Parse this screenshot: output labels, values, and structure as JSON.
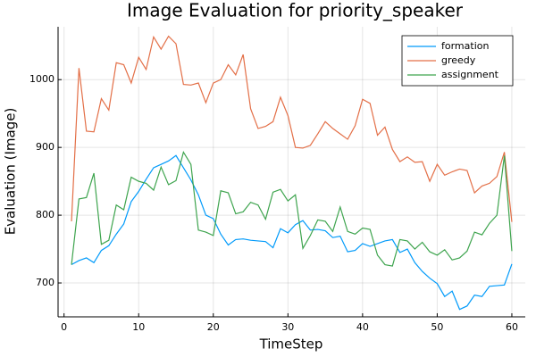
{
  "chart_data": {
    "type": "line",
    "title": "Image Evaluation for priority_speaker",
    "x_label": "TimeStep",
    "y_label": "Evaluation (Image)",
    "x": [
      1,
      2,
      3,
      4,
      5,
      6,
      7,
      8,
      9,
      10,
      11,
      12,
      13,
      14,
      15,
      16,
      17,
      18,
      19,
      20,
      21,
      22,
      23,
      24,
      25,
      26,
      27,
      28,
      29,
      30,
      31,
      32,
      33,
      34,
      35,
      36,
      37,
      38,
      39,
      40,
      41,
      42,
      43,
      44,
      45,
      46,
      47,
      48,
      49,
      50,
      51,
      52,
      53,
      54,
      55,
      56,
      57,
      58,
      59,
      60
    ],
    "series": [
      {
        "name": "formation",
        "color": "#009afa",
        "values": [
          727,
          733,
          737,
          730,
          748,
          755,
          772,
          787,
          820,
          835,
          853,
          870,
          875,
          880,
          888,
          870,
          852,
          830,
          800,
          795,
          772,
          756,
          764,
          765,
          763,
          762,
          761,
          752,
          780,
          774,
          786,
          792,
          778,
          779,
          777,
          767,
          769,
          746,
          748,
          758,
          754,
          758,
          762,
          764,
          745,
          750,
          730,
          717,
          707,
          699,
          680,
          688,
          661,
          666,
          682,
          680,
          695,
          696,
          697,
          728
        ]
      },
      {
        "name": "greedy",
        "color": "#e36f47",
        "values": [
          791,
          1017,
          924,
          923,
          972,
          955,
          1025,
          1022,
          995,
          1033,
          1015,
          1063,
          1045,
          1064,
          1053,
          993,
          992,
          995,
          966,
          995,
          1000,
          1022,
          1007,
          1037,
          957,
          928,
          931,
          938,
          974,
          947,
          900,
          899,
          903,
          920,
          938,
          928,
          920,
          912,
          932,
          971,
          965,
          918,
          930,
          897,
          879,
          886,
          878,
          879,
          850,
          875,
          859,
          864,
          868,
          866,
          833,
          843,
          847,
          857,
          893,
          790
        ]
      },
      {
        "name": "assignment",
        "color": "#3ea44e",
        "values": [
          727,
          824,
          826,
          862,
          757,
          763,
          815,
          808,
          856,
          850,
          847,
          837,
          871,
          845,
          851,
          893,
          875,
          778,
          775,
          770,
          836,
          833,
          802,
          805,
          819,
          815,
          794,
          834,
          838,
          821,
          830,
          751,
          770,
          793,
          791,
          776,
          812,
          776,
          772,
          781,
          779,
          741,
          727,
          725,
          764,
          762,
          750,
          760,
          746,
          741,
          749,
          734,
          737,
          747,
          775,
          771,
          788,
          800,
          888,
          747
        ]
      }
    ],
    "xlim": [
      -0.8,
      61.8
    ],
    "ylim": [
      650,
      1078
    ],
    "xticks": [
      0,
      10,
      20,
      30,
      40,
      50,
      60
    ],
    "yticks": [
      700,
      800,
      900,
      1000
    ],
    "grid": true,
    "legend": "top-right"
  }
}
